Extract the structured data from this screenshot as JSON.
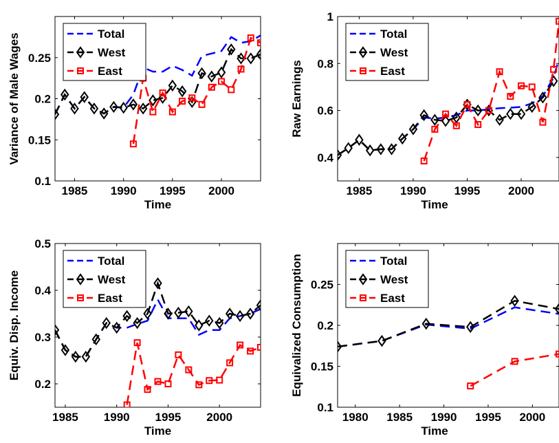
{
  "chart_data": [
    {
      "type": "line",
      "title": "",
      "xlabel": "Time",
      "ylabel": "Variance of Male Wages",
      "xlim": [
        1983,
        2004
      ],
      "ylim": [
        0.1,
        0.3
      ],
      "xticks": [
        1985,
        1990,
        1995,
        2000
      ],
      "yticks": [
        0.1,
        0.15,
        0.2,
        0.25
      ],
      "xtick_labels": [
        "1985",
        "1990",
        "1995",
        "2000"
      ],
      "ytick_labels": [
        "0.1",
        "0.15",
        "0.2",
        "0.25"
      ],
      "legend": {
        "position": "top-left",
        "entries": [
          "Total",
          "West",
          "East"
        ]
      },
      "series": [
        {
          "name": "Total",
          "color": "#0000ff",
          "marker": "none",
          "x": [
            1983,
            1984,
            1985,
            1986,
            1987,
            1988,
            1989,
            1990,
            1991,
            1992,
            1993,
            1994,
            1995,
            1996,
            1997,
            1998,
            1999,
            2000,
            2001,
            2002,
            2003,
            2004
          ],
          "y": [
            0.181,
            0.205,
            0.188,
            0.202,
            0.188,
            0.182,
            0.19,
            0.189,
            0.205,
            0.238,
            0.233,
            0.233,
            0.24,
            0.235,
            0.228,
            0.252,
            0.255,
            0.258,
            0.275,
            0.268,
            0.27,
            0.277
          ]
        },
        {
          "name": "West",
          "color": "#000000",
          "marker": "diamond",
          "x": [
            1983,
            1984,
            1985,
            1986,
            1987,
            1988,
            1989,
            1990,
            1991,
            1992,
            1993,
            1994,
            1995,
            1996,
            1997,
            1998,
            1999,
            2000,
            2001,
            2002,
            2003,
            2004
          ],
          "y": [
            0.181,
            0.205,
            0.188,
            0.202,
            0.188,
            0.182,
            0.19,
            0.189,
            0.193,
            0.188,
            0.198,
            0.201,
            0.216,
            0.209,
            0.196,
            0.231,
            0.227,
            0.232,
            0.26,
            0.249,
            0.249,
            0.254
          ]
        },
        {
          "name": "East",
          "color": "#ff0000",
          "marker": "square",
          "x": [
            1991,
            1992,
            1993,
            1994,
            1995,
            1996,
            1997,
            1998,
            1999,
            2000,
            2001,
            2002,
            2003,
            2004
          ],
          "y": [
            0.145,
            0.225,
            0.184,
            0.207,
            0.184,
            0.197,
            0.201,
            0.193,
            0.214,
            0.221,
            0.211,
            0.236,
            0.274,
            0.268
          ]
        }
      ]
    },
    {
      "type": "line",
      "title": "",
      "xlabel": "Time",
      "ylabel": "Raw Earnings",
      "xlim": [
        1983,
        2003.5
      ],
      "ylim": [
        0.3,
        1.0
      ],
      "xticks": [
        1985,
        1990,
        1995,
        2000
      ],
      "yticks": [
        0.4,
        0.6,
        0.8,
        1.0
      ],
      "xtick_labels": [
        "1985",
        "1990",
        "1995",
        "2000"
      ],
      "ytick_labels": [
        "0.4",
        "0.6",
        "0.8",
        "1"
      ],
      "legend": {
        "position": "top-left",
        "entries": [
          "Total",
          "West",
          "East"
        ]
      },
      "series": [
        {
          "name": "Total",
          "color": "#0000ff",
          "marker": "none",
          "x": [
            1983,
            1984,
            1985,
            1986,
            1987,
            1988,
            1989,
            1990,
            1991,
            1992,
            1993,
            1994,
            1995,
            1996,
            1997,
            1998,
            1999,
            2000,
            2001,
            2002,
            2003,
            2003.5
          ],
          "y": [
            0.41,
            0.44,
            0.475,
            0.43,
            0.435,
            0.435,
            0.48,
            0.52,
            0.57,
            0.565,
            0.57,
            0.58,
            0.6,
            0.6,
            0.605,
            0.61,
            0.612,
            0.615,
            0.63,
            0.66,
            0.74,
            0.82
          ]
        },
        {
          "name": "West",
          "color": "#000000",
          "marker": "diamond",
          "x": [
            1983,
            1984,
            1985,
            1986,
            1987,
            1988,
            1989,
            1990,
            1991,
            1992,
            1993,
            1994,
            1995,
            1996,
            1997,
            1998,
            1999,
            2000,
            2001,
            2002,
            2003
          ],
          "y": [
            0.41,
            0.44,
            0.475,
            0.43,
            0.435,
            0.435,
            0.48,
            0.52,
            0.58,
            0.56,
            0.555,
            0.57,
            0.625,
            0.6,
            0.6,
            0.56,
            0.585,
            0.585,
            0.615,
            0.655,
            0.725
          ]
        },
        {
          "name": "East",
          "color": "#ff0000",
          "marker": "square",
          "x": [
            1991,
            1992,
            1993,
            1994,
            1995,
            1996,
            1997,
            1998,
            1999,
            2000,
            2001,
            2002,
            2003,
            2003.5
          ],
          "y": [
            0.385,
            0.52,
            0.585,
            0.535,
            0.625,
            0.54,
            0.6,
            0.765,
            0.66,
            0.705,
            0.7,
            0.55,
            0.775,
            0.98
          ]
        }
      ]
    },
    {
      "type": "line",
      "title": "",
      "xlabel": "Time",
      "ylabel": "Equiv. Disp. Income",
      "xlim": [
        1984,
        2004
      ],
      "ylim": [
        0.15,
        0.5
      ],
      "xticks": [
        1985,
        1990,
        1995,
        2000
      ],
      "yticks": [
        0.2,
        0.3,
        0.4,
        0.5
      ],
      "xtick_labels": [
        "1985",
        "1990",
        "1995",
        "2000"
      ],
      "ytick_labels": [
        "0.2",
        "0.3",
        "0.4",
        "0.5"
      ],
      "legend": {
        "position": "top-left",
        "entries": [
          "Total",
          "West",
          "East"
        ]
      },
      "series": [
        {
          "name": "Total",
          "color": "#0000ff",
          "marker": "none",
          "x": [
            1984,
            1985,
            1986,
            1987,
            1988,
            1989,
            1990,
            1991,
            1992,
            1993,
            1994,
            1995,
            1996,
            1997,
            1998,
            1999,
            2000,
            2001,
            2002,
            2003,
            2004
          ],
          "y": [
            0.315,
            0.272,
            0.258,
            0.258,
            0.295,
            0.33,
            0.32,
            0.32,
            0.328,
            0.335,
            0.38,
            0.34,
            0.34,
            0.34,
            0.305,
            0.315,
            0.315,
            0.34,
            0.345,
            0.35,
            0.36
          ]
        },
        {
          "name": "West",
          "color": "#000000",
          "marker": "diamond",
          "x": [
            1984,
            1985,
            1986,
            1987,
            1988,
            1989,
            1990,
            1991,
            1992,
            1993,
            1994,
            1995,
            1996,
            1997,
            1998,
            1999,
            2000,
            2001,
            2002,
            2003,
            2004
          ],
          "y": [
            0.315,
            0.272,
            0.258,
            0.258,
            0.295,
            0.33,
            0.32,
            0.345,
            0.33,
            0.35,
            0.415,
            0.35,
            0.352,
            0.355,
            0.325,
            0.335,
            0.33,
            0.35,
            0.345,
            0.35,
            0.368
          ]
        },
        {
          "name": "East",
          "color": "#ff0000",
          "marker": "square",
          "x": [
            1991,
            1992,
            1993,
            1994,
            1995,
            1996,
            1997,
            1998,
            1999,
            2000,
            2001,
            2002,
            2003,
            2004
          ],
          "y": [
            0.155,
            0.288,
            0.188,
            0.205,
            0.2,
            0.262,
            0.23,
            0.198,
            0.207,
            0.208,
            0.245,
            0.283,
            0.27,
            0.278
          ]
        }
      ]
    },
    {
      "type": "line",
      "title": "",
      "xlabel": "Time",
      "ylabel": "Equivalized Consumption",
      "xlim": [
        1978,
        2003
      ],
      "ylim": [
        0.1,
        0.3
      ],
      "xticks": [
        1980,
        1985,
        1990,
        1995,
        2000
      ],
      "yticks": [
        0.1,
        0.15,
        0.2,
        0.25
      ],
      "xtick_labels": [
        "1980",
        "1985",
        "1990",
        "1995",
        "2000"
      ],
      "ytick_labels": [
        "0.1",
        "0.15",
        "0.2",
        "0.25"
      ],
      "legend": {
        "position": "top-left",
        "entries": [
          "Total",
          "West",
          "East"
        ]
      },
      "series": [
        {
          "name": "Total",
          "color": "#0000ff",
          "marker": "none",
          "x": [
            1978,
            1983,
            1988,
            1993,
            1998,
            2003
          ],
          "y": [
            0.174,
            0.181,
            0.201,
            0.196,
            0.222,
            0.214
          ]
        },
        {
          "name": "West",
          "color": "#000000",
          "marker": "diamond",
          "x": [
            1978,
            1983,
            1988,
            1993,
            1998,
            2003
          ],
          "y": [
            0.174,
            0.181,
            0.202,
            0.198,
            0.23,
            0.22
          ]
        },
        {
          "name": "East",
          "color": "#ff0000",
          "marker": "square",
          "x": [
            1993,
            1998,
            2003
          ],
          "y": [
            0.126,
            0.156,
            0.165
          ]
        }
      ]
    }
  ]
}
